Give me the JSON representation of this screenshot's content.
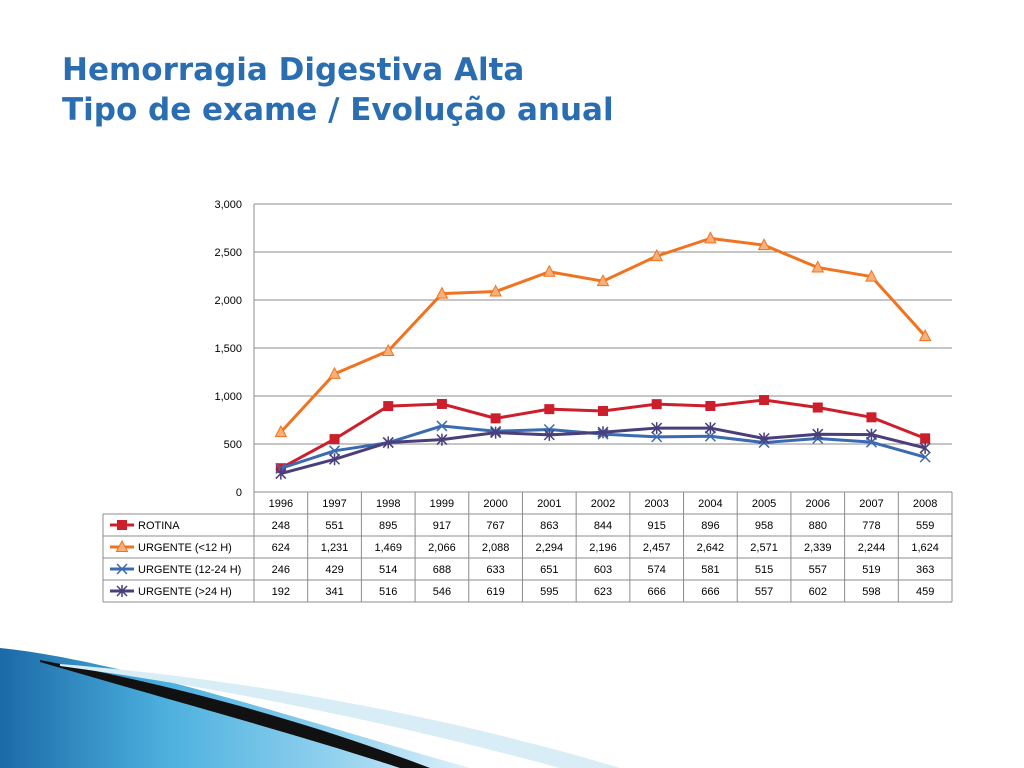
{
  "slide": {
    "title_line1": "Hemorragia Digestiva Alta",
    "title_line2": "Tipo de exame / Evolução anual"
  },
  "chart_data": {
    "type": "line",
    "categories": [
      "1996",
      "1997",
      "1998",
      "1999",
      "2000",
      "2001",
      "2002",
      "2003",
      "2004",
      "2005",
      "2006",
      "2007",
      "2008"
    ],
    "ylim": [
      0,
      3000
    ],
    "yticks": [
      "0",
      "500",
      "1,000",
      "1,500",
      "2,000",
      "2,500",
      "3,000"
    ],
    "grid": "horizontal",
    "legend": "data table",
    "series": [
      {
        "name": "ROTINA",
        "color": "#cc1f2b",
        "marker": "square",
        "values": [
          248,
          551,
          895,
          917,
          767,
          863,
          844,
          915,
          896,
          958,
          880,
          778,
          559
        ],
        "labels": [
          "248",
          "551",
          "895",
          "917",
          "767",
          "863",
          "844",
          "915",
          "896",
          "958",
          "880",
          "778",
          "559"
        ]
      },
      {
        "name": "URGENTE (<12 H)",
        "color": "#f07320",
        "marker": "triangle",
        "values": [
          624,
          1231,
          1469,
          2066,
          2088,
          2294,
          2196,
          2457,
          2642,
          2571,
          2339,
          2244,
          1624
        ],
        "labels": [
          "624",
          "1,231",
          "1,469",
          "2,066",
          "2,088",
          "2,294",
          "2,196",
          "2,457",
          "2,642",
          "2,571",
          "2,339",
          "2,244",
          "1,624"
        ]
      },
      {
        "name": "URGENTE (12-24 H)",
        "color": "#3a6bb0",
        "marker": "x",
        "values": [
          246,
          429,
          514,
          688,
          633,
          651,
          603,
          574,
          581,
          515,
          557,
          519,
          363
        ],
        "labels": [
          "246",
          "429",
          "514",
          "688",
          "633",
          "651",
          "603",
          "574",
          "581",
          "515",
          "557",
          "519",
          "363"
        ]
      },
      {
        "name": "URGENTE (>24 H)",
        "color": "#4a3f7a",
        "marker": "star",
        "values": [
          192,
          341,
          516,
          546,
          619,
          595,
          623,
          666,
          666,
          557,
          602,
          598,
          459
        ],
        "labels": [
          "192",
          "341",
          "516",
          "546",
          "619",
          "595",
          "623",
          "666",
          "666",
          "557",
          "602",
          "598",
          "459"
        ]
      }
    ]
  }
}
